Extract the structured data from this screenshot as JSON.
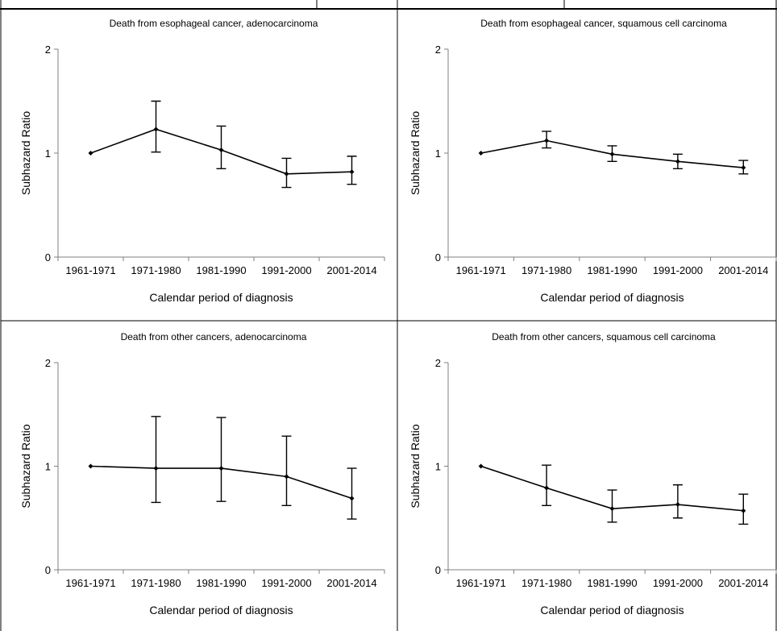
{
  "chart_data": [
    {
      "type": "line",
      "title": "Death from esophageal cancer, adenocarcinoma",
      "xlabel": "Calendar period of diagnosis",
      "ylabel": "Subhazard Ratio",
      "ylim": [
        0,
        2
      ],
      "yticks": [
        "0",
        "1",
        "2"
      ],
      "grid": false,
      "categories": [
        "1961-1971",
        "1971-1980",
        "1981-1990",
        "1991-2000",
        "2001-2014"
      ],
      "series": [
        {
          "values": [
            1.0,
            1.23,
            1.03,
            0.8,
            0.82
          ],
          "error_low": [
            null,
            1.01,
            0.85,
            0.67,
            0.7
          ],
          "error_high": [
            null,
            1.5,
            1.26,
            0.95,
            0.97
          ]
        }
      ]
    },
    {
      "type": "line",
      "title": "Death from esophageal cancer, squamous cell carcinoma",
      "xlabel": "Calendar period of diagnosis",
      "ylabel": "Subhazard Ratio",
      "ylim": [
        0,
        2
      ],
      "yticks": [
        "0",
        "1",
        "2"
      ],
      "grid": false,
      "categories": [
        "1961-1971",
        "1971-1980",
        "1981-1990",
        "1991-2000",
        "2001-2014"
      ],
      "series": [
        {
          "values": [
            1.0,
            1.12,
            0.99,
            0.92,
            0.86
          ],
          "error_low": [
            null,
            1.05,
            0.92,
            0.85,
            0.8
          ],
          "error_high": [
            null,
            1.21,
            1.07,
            0.99,
            0.93
          ]
        }
      ]
    },
    {
      "type": "line",
      "title": "Death from other cancers, adenocarcinoma",
      "xlabel": "Calendar period of diagnosis",
      "ylabel": "Subhazard Ratio",
      "ylim": [
        0,
        2
      ],
      "yticks": [
        "0",
        "1",
        "2"
      ],
      "grid": false,
      "categories": [
        "1961-1971",
        "1971-1980",
        "1981-1990",
        "1991-2000",
        "2001-2014"
      ],
      "series": [
        {
          "values": [
            1.0,
            0.98,
            0.98,
            0.9,
            0.69
          ],
          "error_low": [
            null,
            0.65,
            0.66,
            0.62,
            0.49
          ],
          "error_high": [
            null,
            1.48,
            1.47,
            1.29,
            0.98
          ]
        }
      ]
    },
    {
      "type": "line",
      "title": "Death from other cancers, squamous cell carcinoma",
      "xlabel": "Calendar period of diagnosis",
      "ylabel": "Subhazard Ratio",
      "ylim": [
        0,
        2
      ],
      "yticks": [
        "0",
        "1",
        "2"
      ],
      "grid": false,
      "categories": [
        "1961-1971",
        "1971-1980",
        "1981-1990",
        "1991-2000",
        "2001-2014"
      ],
      "series": [
        {
          "values": [
            1.0,
            0.79,
            0.59,
            0.63,
            0.57
          ],
          "error_low": [
            null,
            0.62,
            0.46,
            0.5,
            0.44
          ],
          "error_high": [
            null,
            1.01,
            0.77,
            0.82,
            0.73
          ]
        }
      ]
    }
  ]
}
